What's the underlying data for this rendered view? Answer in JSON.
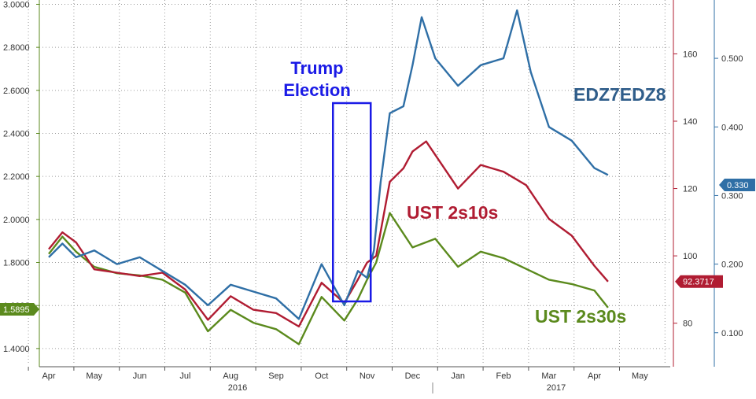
{
  "chart_data": {
    "type": "line",
    "x_labels": [
      "Apr",
      "May",
      "Jun",
      "Jul",
      "Aug",
      "Sep",
      "Oct",
      "Nov",
      "Dec",
      "Jan",
      "Feb",
      "Mar",
      "Apr",
      "May"
    ],
    "x_years": [
      "2016",
      "2017"
    ],
    "axes": {
      "left": {
        "range": [
          1.33,
          3.02
        ],
        "ticks": [
          "3.0000",
          "2.8000",
          "2.6000",
          "2.4000",
          "2.2000",
          "2.0000",
          "1.8000",
          "1.6000",
          "1.4000"
        ],
        "tick_values": [
          3.0,
          2.8,
          2.6,
          2.4,
          2.2,
          2.0,
          1.8,
          1.6,
          1.4
        ],
        "color": "#5b8a1d"
      },
      "right1": {
        "range": [
          68,
          176
        ],
        "ticks": [
          "160",
          "140",
          "120",
          "100",
          "80"
        ],
        "tick_values": [
          160,
          140,
          120,
          100,
          80
        ],
        "color": "#b01c32"
      },
      "right2": {
        "range": [
          0.055,
          0.585
        ],
        "ticks": [
          "0.500",
          "0.400",
          "0.300",
          "0.200",
          "0.100"
        ],
        "tick_values": [
          0.5,
          0.4,
          0.3,
          0.2,
          0.1
        ],
        "color": "#2f6fa6"
      }
    },
    "grid": true,
    "series": [
      {
        "name": "UST 2s30s",
        "axis": "left",
        "color": "#5b8a1d",
        "x": [
          0,
          0.3,
          0.6,
          1,
          1.5,
          2,
          2.5,
          3,
          3.5,
          4,
          4.5,
          5,
          5.5,
          6,
          6.5,
          6.8,
          7,
          7.2,
          7.5,
          8,
          8.5,
          9,
          9.5,
          10,
          10.5,
          11,
          11.5,
          12,
          12.3
        ],
        "y": [
          1.84,
          1.92,
          1.85,
          1.78,
          1.75,
          1.74,
          1.72,
          1.66,
          1.48,
          1.58,
          1.52,
          1.49,
          1.42,
          1.64,
          1.53,
          1.63,
          1.72,
          1.8,
          2.03,
          1.87,
          1.91,
          1.78,
          1.85,
          1.82,
          1.77,
          1.72,
          1.7,
          1.67,
          1.59
        ]
      },
      {
        "name": "UST 2s10s",
        "axis": "right1",
        "color": "#b01c32",
        "x": [
          0,
          0.3,
          0.6,
          1,
          1.5,
          2,
          2.5,
          3,
          3.5,
          4,
          4.5,
          5,
          5.5,
          6,
          6.5,
          6.8,
          7,
          7.2,
          7.5,
          7.8,
          8,
          8.3,
          8.5,
          9,
          9.5,
          10,
          10.5,
          11,
          11.5,
          12,
          12.3
        ],
        "y": [
          102,
          107,
          104,
          96,
          95,
          94,
          95,
          90,
          81,
          88,
          84,
          83,
          79,
          92,
          86,
          93,
          98,
          100,
          122,
          126,
          131,
          134,
          130,
          120,
          127,
          125,
          121,
          111,
          106,
          97,
          92.37
        ]
      },
      {
        "name": "EDZ7EDZ8",
        "axis": "right2",
        "color": "#2f6fa6",
        "x": [
          0,
          0.3,
          0.6,
          1,
          1.5,
          2,
          2.5,
          3,
          3.5,
          4,
          4.5,
          5,
          5.5,
          6,
          6.5,
          6.8,
          7,
          7.15,
          7.3,
          7.5,
          7.8,
          8,
          8.2,
          8.5,
          9,
          9.5,
          10,
          10.3,
          10.6,
          11,
          11.5,
          12,
          12.3
        ],
        "y": [
          0.21,
          0.23,
          0.21,
          0.22,
          0.2,
          0.21,
          0.19,
          0.17,
          0.14,
          0.17,
          0.16,
          0.15,
          0.12,
          0.2,
          0.14,
          0.19,
          0.18,
          0.22,
          0.32,
          0.42,
          0.43,
          0.49,
          0.56,
          0.5,
          0.46,
          0.49,
          0.5,
          0.57,
          0.48,
          0.4,
          0.38,
          0.34,
          0.33
        ]
      }
    ],
    "badges": {
      "left": "1.5895",
      "right1": "92.3717",
      "right2": "0.330"
    },
    "annotations": {
      "trump": [
        "Trump",
        "Election"
      ],
      "edz": "EDZ7EDZ8",
      "ust2s10s": "UST 2s10s",
      "ust2s30s": "UST 2s30s"
    },
    "highlight_box": {
      "x_from": 6.25,
      "x_to": 7.08
    }
  }
}
